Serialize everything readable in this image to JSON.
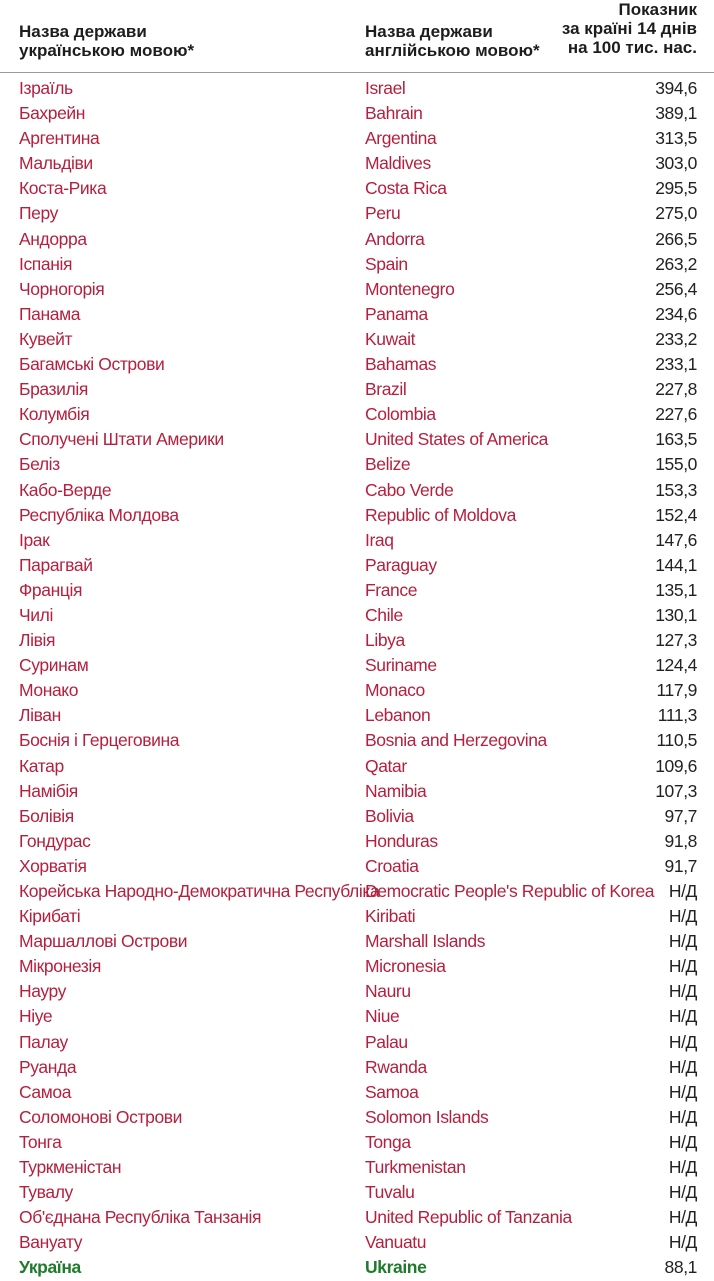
{
  "header": {
    "col_ua": [
      "Назва держави",
      "українською мовою*"
    ],
    "col_en": [
      "Назва держави",
      "англійською мовою*"
    ],
    "col_value": [
      "Показник",
      "за країні 14 днів",
      "на 100 тис. нас."
    ]
  },
  "colors": {
    "country_text": "#b5203e",
    "value_text": "#222222",
    "ukraine_text": "#1f7a2c"
  },
  "rows": [
    {
      "ua": "Ізраїль",
      "en": "Israel",
      "value": "394,6"
    },
    {
      "ua": "Бахрейн",
      "en": "Bahrain",
      "value": "389,1"
    },
    {
      "ua": "Аргентина",
      "en": "Argentina",
      "value": "313,5"
    },
    {
      "ua": "Мальдіви",
      "en": "Maldives",
      "value": "303,0"
    },
    {
      "ua": "Коста-Рика",
      "en": "Costa Rica",
      "value": "295,5"
    },
    {
      "ua": "Перу",
      "en": "Peru",
      "value": "275,0"
    },
    {
      "ua": "Андорра",
      "en": "Andorra",
      "value": "266,5"
    },
    {
      "ua": "Іспанія",
      "en": "Spain",
      "value": "263,2"
    },
    {
      "ua": "Чорногорія",
      "en": "Montenegro",
      "value": "256,4"
    },
    {
      "ua": "Панама",
      "en": "Panama",
      "value": "234,6"
    },
    {
      "ua": "Кувейт",
      "en": "Kuwait",
      "value": "233,2"
    },
    {
      "ua": "Багамські Острови",
      "en": "Bahamas",
      "value": "233,1"
    },
    {
      "ua": "Бразилія",
      "en": "Brazil",
      "value": "227,8"
    },
    {
      "ua": "Колумбія",
      "en": "Colombia",
      "value": "227,6"
    },
    {
      "ua": "Сполучені Штати Америки",
      "en": "United States of America",
      "value": "163,5"
    },
    {
      "ua": "Беліз",
      "en": "Belize",
      "value": "155,0"
    },
    {
      "ua": "Кабо-Верде",
      "en": "Cabo Verde",
      "value": "153,3"
    },
    {
      "ua": "Республіка Молдова",
      "en": "Republic of Moldova",
      "value": "152,4"
    },
    {
      "ua": "Ірак",
      "en": "Iraq",
      "value": "147,6"
    },
    {
      "ua": "Парагвай",
      "en": "Paraguay",
      "value": "144,1"
    },
    {
      "ua": "Франція",
      "en": "France",
      "value": "135,1"
    },
    {
      "ua": "Чилі",
      "en": "Chile",
      "value": "130,1"
    },
    {
      "ua": "Лівія",
      "en": "Libya",
      "value": "127,3"
    },
    {
      "ua": "Суринам",
      "en": "Suriname",
      "value": "124,4"
    },
    {
      "ua": "Монако",
      "en": "Monaco",
      "value": "117,9"
    },
    {
      "ua": "Ліван",
      "en": "Lebanon",
      "value": "111,3"
    },
    {
      "ua": "Боснія і Герцеговина",
      "en": "Bosnia and Herzegovina",
      "value": "110,5"
    },
    {
      "ua": "Катар",
      "en": "Qatar",
      "value": "109,6"
    },
    {
      "ua": "Намібія",
      "en": "Namibia",
      "value": "107,3"
    },
    {
      "ua": "Болівія",
      "en": "Bolivia",
      "value": "97,7"
    },
    {
      "ua": "Гондурас",
      "en": "Honduras",
      "value": "91,8"
    },
    {
      "ua": "Хорватія",
      "en": "Croatia",
      "value": "91,7"
    },
    {
      "ua": "Корейська Народно-Демократична Республіка",
      "en": "Democratic People's Republic of Korea",
      "value": "Н/Д"
    },
    {
      "ua": "Кірибаті",
      "en": "Kiribati",
      "value": "Н/Д"
    },
    {
      "ua": "Маршаллові Острови",
      "en": "Marshall Islands",
      "value": "Н/Д"
    },
    {
      "ua": "Мікронезія",
      "en": "Micronesia",
      "value": "Н/Д"
    },
    {
      "ua": "Науру",
      "en": "Nauru",
      "value": "Н/Д"
    },
    {
      "ua": "Ніуе",
      "en": "Niue",
      "value": "Н/Д"
    },
    {
      "ua": "Палау",
      "en": "Palau",
      "value": "Н/Д"
    },
    {
      "ua": "Руанда",
      "en": "Rwanda",
      "value": "Н/Д"
    },
    {
      "ua": "Самоа",
      "en": "Samoa",
      "value": "Н/Д"
    },
    {
      "ua": "Соломонові Острови",
      "en": "Solomon Islands",
      "value": "Н/Д"
    },
    {
      "ua": "Тонга",
      "en": "Tonga",
      "value": "Н/Д"
    },
    {
      "ua": "Туркменістан",
      "en": "Turkmenistan",
      "value": "Н/Д"
    },
    {
      "ua": "Тувалу",
      "en": "Tuvalu",
      "value": "Н/Д"
    },
    {
      "ua": "Об'єднана Республіка Танзанія",
      "en": "United Republic of Tanzania",
      "value": "Н/Д"
    },
    {
      "ua": "Вануату",
      "en": "Vanuatu",
      "value": "Н/Д"
    },
    {
      "ua": "Україна",
      "en": "Ukraine",
      "value": "88,1",
      "highlight": true
    }
  ]
}
